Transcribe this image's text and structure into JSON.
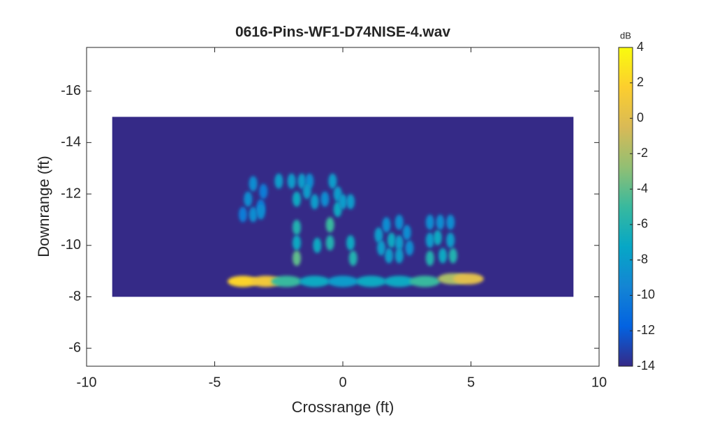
{
  "chart_data": {
    "type": "heatmap",
    "title": "0616-Pins-WF1-D74NISE-4.wav",
    "x_label": "Crossrange (ft)",
    "y_label": "Downrange (ft)",
    "xlim": [
      -10,
      10
    ],
    "xticks": [
      -10,
      -5,
      0,
      5,
      10
    ],
    "ylim": [
      -17.7,
      -5.3
    ],
    "yticks": [
      -16,
      -14,
      -12,
      -10,
      -8,
      -6
    ],
    "y_reversed": true,
    "image_extent": {
      "x": [
        -9,
        9
      ],
      "y": [
        -15,
        -8
      ]
    },
    "background_value": -14,
    "x": [
      -3.5,
      -3.1,
      -3.7,
      -3.2,
      -3.9,
      -3.5,
      -3.2,
      -2.5,
      -2.0,
      -1.6,
      -1.3,
      -1.8,
      -1.4,
      -1.8,
      -1.8,
      -1.8,
      -1.1,
      -0.7,
      -0.4,
      -0.2,
      -0.2,
      0.0,
      0.3,
      -0.5,
      -0.5,
      -1.0,
      0.3,
      0.4,
      -3.9,
      -3.0,
      -2.2,
      -1.1,
      0.0,
      1.1,
      2.2,
      3.2,
      4.3,
      4.9,
      1.4,
      1.7,
      2.2,
      1.5,
      1.9,
      2.2,
      1.8,
      2.2,
      2.6,
      2.5,
      3.4,
      3.8,
      4.2,
      3.4,
      3.7,
      4.2,
      3.4,
      3.9,
      4.3
    ],
    "y": [
      -12.4,
      -12.1,
      -11.8,
      -11.5,
      -11.2,
      -11.2,
      -11.3,
      -12.5,
      -12.5,
      -12.5,
      -12.5,
      -11.8,
      -12.1,
      -10.7,
      -10.1,
      -9.5,
      -11.7,
      -11.8,
      -12.5,
      -12.0,
      -11.4,
      -11.7,
      -11.7,
      -10.8,
      -10.1,
      -10.0,
      -10.1,
      -9.5,
      -8.6,
      -8.6,
      -8.6,
      -8.6,
      -8.6,
      -8.6,
      -8.6,
      -8.6,
      -8.7,
      -8.7,
      -10.4,
      -10.8,
      -10.9,
      -9.9,
      -10.2,
      -10.1,
      -9.6,
      -9.6,
      -9.9,
      -10.5,
      -10.9,
      -10.9,
      -10.9,
      -10.2,
      -10.3,
      -10.2,
      -9.5,
      -9.6,
      -9.6
    ],
    "values": [
      -9,
      -10,
      -9,
      -10,
      -10,
      -9,
      -9,
      -8,
      -8,
      -8,
      -9,
      -7,
      -8,
      -6,
      -7,
      -4,
      -8,
      -9,
      -8,
      -8,
      -7,
      -8,
      -8,
      -5,
      -6,
      -7,
      -7,
      -6,
      2,
      1,
      -5,
      -7,
      -8,
      -7,
      -7,
      -5,
      -2,
      0,
      -8,
      -9,
      -9,
      -8,
      -7,
      -8,
      -8,
      -8,
      -9,
      -9,
      -9,
      -9,
      -9,
      -8,
      -7,
      -8,
      -6,
      -7,
      -6
    ],
    "clim": [
      -14,
      4
    ],
    "colorbar_label": "dB",
    "colorbar_ticks": [
      -14,
      -12,
      -10,
      -8,
      -6,
      -4,
      -2,
      0,
      2,
      4
    ],
    "colormap": [
      "#352a87",
      "#0363e1",
      "#1485d4",
      "#06a7c6",
      "#38b99e",
      "#92bf73",
      "#d9ba56",
      "#fcce2e",
      "#f9fb0e"
    ]
  }
}
